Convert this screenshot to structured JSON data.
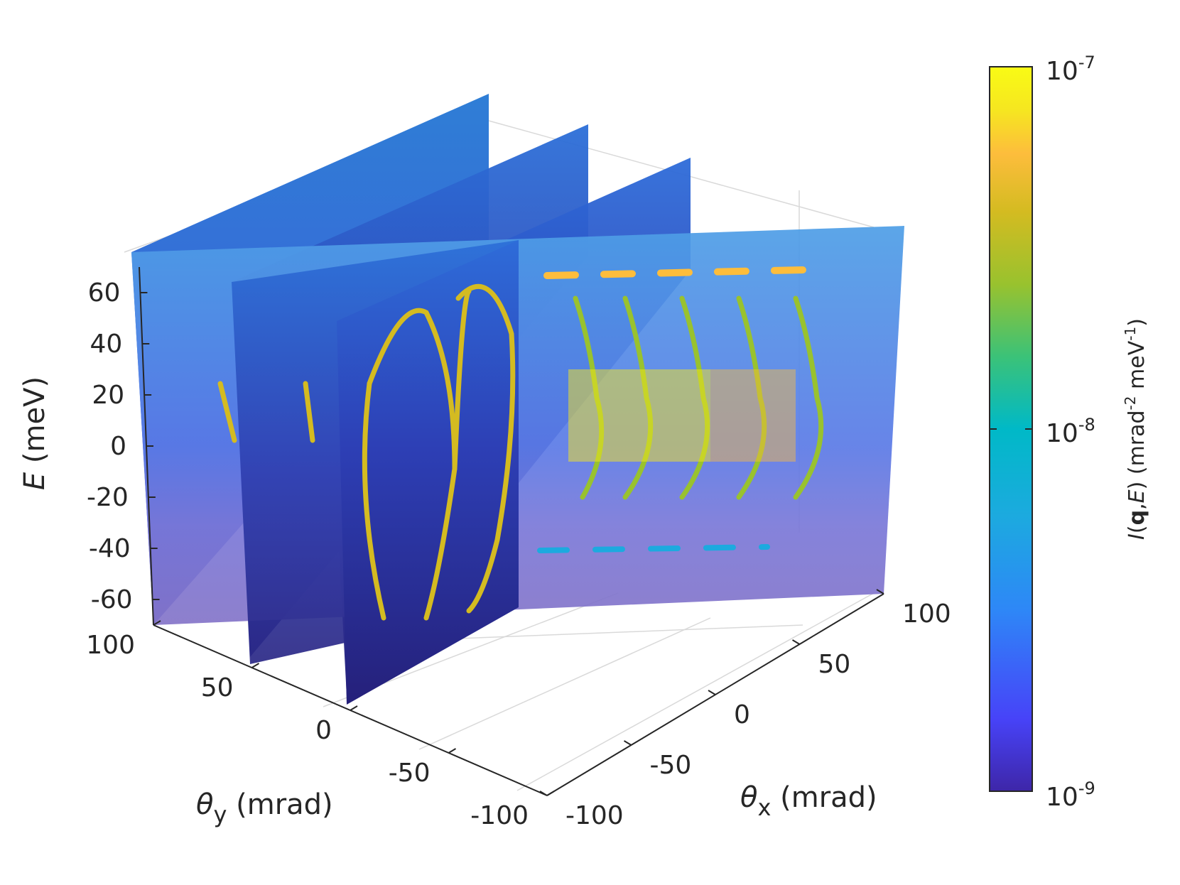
{
  "chart_data": {
    "type": "heatmap",
    "description_kind": "3d-slice-stack",
    "axes": {
      "x": {
        "label_symbol": "θ",
        "label_sub": "x",
        "label_unit": " (mrad)",
        "ticks": [
          "-100",
          "-50",
          "0",
          "50",
          "100"
        ],
        "range": [
          -100,
          100
        ]
      },
      "y": {
        "label_symbol": "θ",
        "label_sub": "y",
        "label_unit": " (mrad)",
        "ticks": [
          "100",
          "50",
          "0",
          "-50",
          "-100"
        ],
        "range": [
          -100,
          100
        ]
      },
      "z": {
        "label_italic": "E",
        "label_unit": " (meV)",
        "ticks": [
          "60",
          "40",
          "20",
          "0",
          "-20",
          "-40",
          "-60"
        ],
        "range": [
          -70,
          70
        ]
      }
    },
    "colorbar": {
      "label_italic_I": "I",
      "label_paren_open": "(",
      "label_bold_q": "q",
      "label_comma_E": ",",
      "label_italic_E": "E",
      "label_rest": ") (mrad",
      "label_sup1": "-2",
      "label_mid": " meV",
      "label_sup2": "-1",
      "label_end": ")",
      "scale": "log",
      "ticks": [
        {
          "base": "10",
          "exp": "-7"
        },
        {
          "base": "10",
          "exp": "-8"
        },
        {
          "base": "10",
          "exp": "-9"
        }
      ],
      "range": [
        1e-09,
        1e-07
      ],
      "colormap": [
        "#3e26a8",
        "#4743f8",
        "#2e87f7",
        "#1caadf",
        "#00b9c7",
        "#3bc278",
        "#99c22e",
        "#d4bb21",
        "#fdbd3c",
        "#f6e620",
        "#f9fb15"
      ]
    },
    "slices": [
      {
        "orientation": "theta_x = const",
        "theta_y_range": [
          -100,
          100
        ]
      },
      {
        "orientation": "theta_x = const",
        "theta_y_range": [
          -100,
          100
        ]
      },
      {
        "orientation": "theta_x = const",
        "theta_y_range": [
          -100,
          100
        ]
      },
      {
        "orientation": "theta_y = const",
        "theta_x_range": [
          -100,
          100
        ]
      }
    ]
  }
}
